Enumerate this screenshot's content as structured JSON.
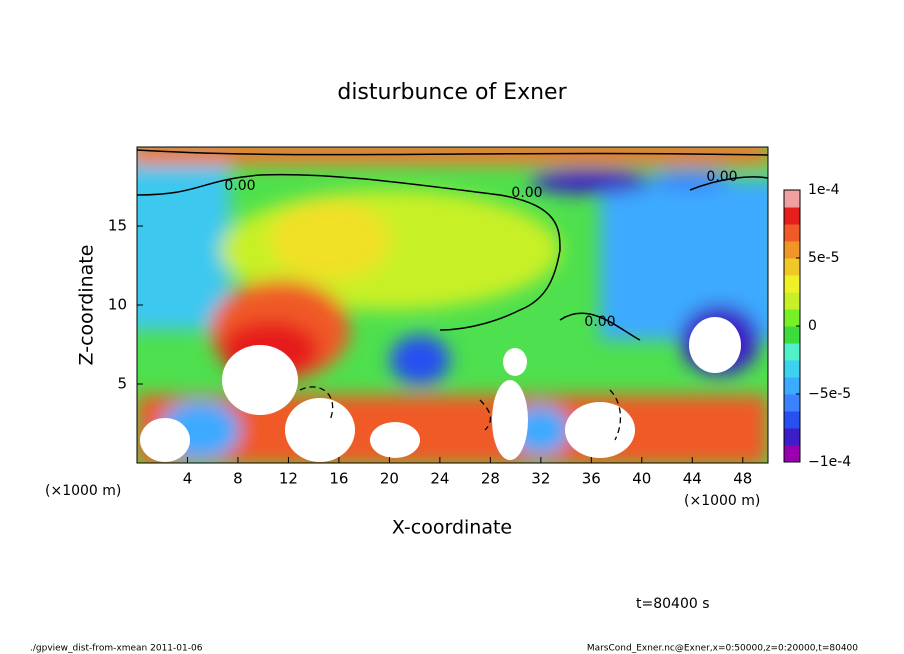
{
  "chart_data": {
    "type": "contour",
    "title": "disturbunce of Exner",
    "xlabel": "X-coordinate",
    "ylabel": "Z-coordinate",
    "x_unit": "(×1000 m)",
    "xlim": [
      0,
      50
    ],
    "ylim": [
      0,
      20
    ],
    "xticks": [
      4,
      8,
      12,
      16,
      20,
      24,
      28,
      32,
      36,
      40,
      44,
      48
    ],
    "yticks": [
      5,
      10,
      15
    ],
    "clim": [
      -0.0001,
      0.0001
    ],
    "cticks": [
      {
        "value": 0.0001,
        "label": "1e-4"
      },
      {
        "value": 5e-05,
        "label": "5e-5"
      },
      0,
      {
        "value": -5e-05,
        "label": "−5e-5"
      },
      {
        "value": -0.0001,
        "label": "−1e-4"
      }
    ],
    "colors": [
      "#9a00b0",
      "#3c1ec8",
      "#2850f0",
      "#3c82ff",
      "#3caaff",
      "#3cd2f0",
      "#50f0c8",
      "#3cdc3c",
      "#78f028",
      "#c8f028",
      "#f0f028",
      "#f0c828",
      "#f09628",
      "#f05a28",
      "#e61e1e",
      "#f0a0a0"
    ],
    "contour_labels": [
      "0.00",
      "0.00",
      "0.00",
      "0.00"
    ],
    "annotation": "t=80400 s",
    "footer_left": "./gpview_dist-from-xmean  2011-01-06",
    "footer_right": "MarsCond_Exner.nc@Exner,x=0:50000,z=0:20000,t=80400"
  }
}
